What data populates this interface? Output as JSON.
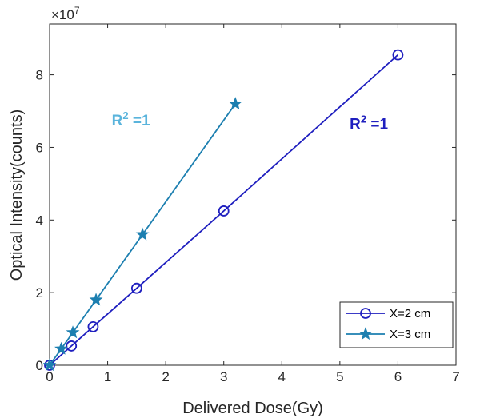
{
  "chart_data": {
    "type": "line",
    "xlabel": "Delivered Dose(Gy)",
    "ylabel": "Optical Intensity(counts)",
    "xlim": [
      0,
      7
    ],
    "ylim": [
      0,
      9.4
    ],
    "y_multiplier": "×10",
    "y_exponent": "7",
    "x_ticks": [
      "0",
      "1",
      "2",
      "3",
      "4",
      "5",
      "6",
      "7"
    ],
    "y_ticks": [
      "0",
      "2",
      "4",
      "6",
      "8"
    ],
    "grid": false,
    "legend_position": "bottom-right",
    "series": [
      {
        "name": "X=2 cm",
        "marker": "circle",
        "color": "#1f1fbf",
        "x": [
          0,
          0.375,
          0.75,
          1.5,
          3,
          6
        ],
        "y": [
          0,
          0.53,
          1.06,
          2.12,
          4.25,
          8.55
        ]
      },
      {
        "name": "X=3 cm",
        "marker": "star",
        "color": "#1c7fb0",
        "x": [
          0,
          0.2,
          0.4,
          0.8,
          1.6,
          3.2
        ],
        "y": [
          0,
          0.45,
          0.9,
          1.8,
          3.6,
          7.2
        ]
      }
    ],
    "annotations": [
      {
        "base": "R",
        "sup": "2",
        "rest": " =1",
        "color": "#5ab4dc",
        "x": 1.4,
        "y": 6.6
      },
      {
        "base": "R",
        "sup": "2",
        "rest": " =1",
        "color": "#1f1fbf",
        "x": 5.5,
        "y": 6.5
      }
    ]
  }
}
